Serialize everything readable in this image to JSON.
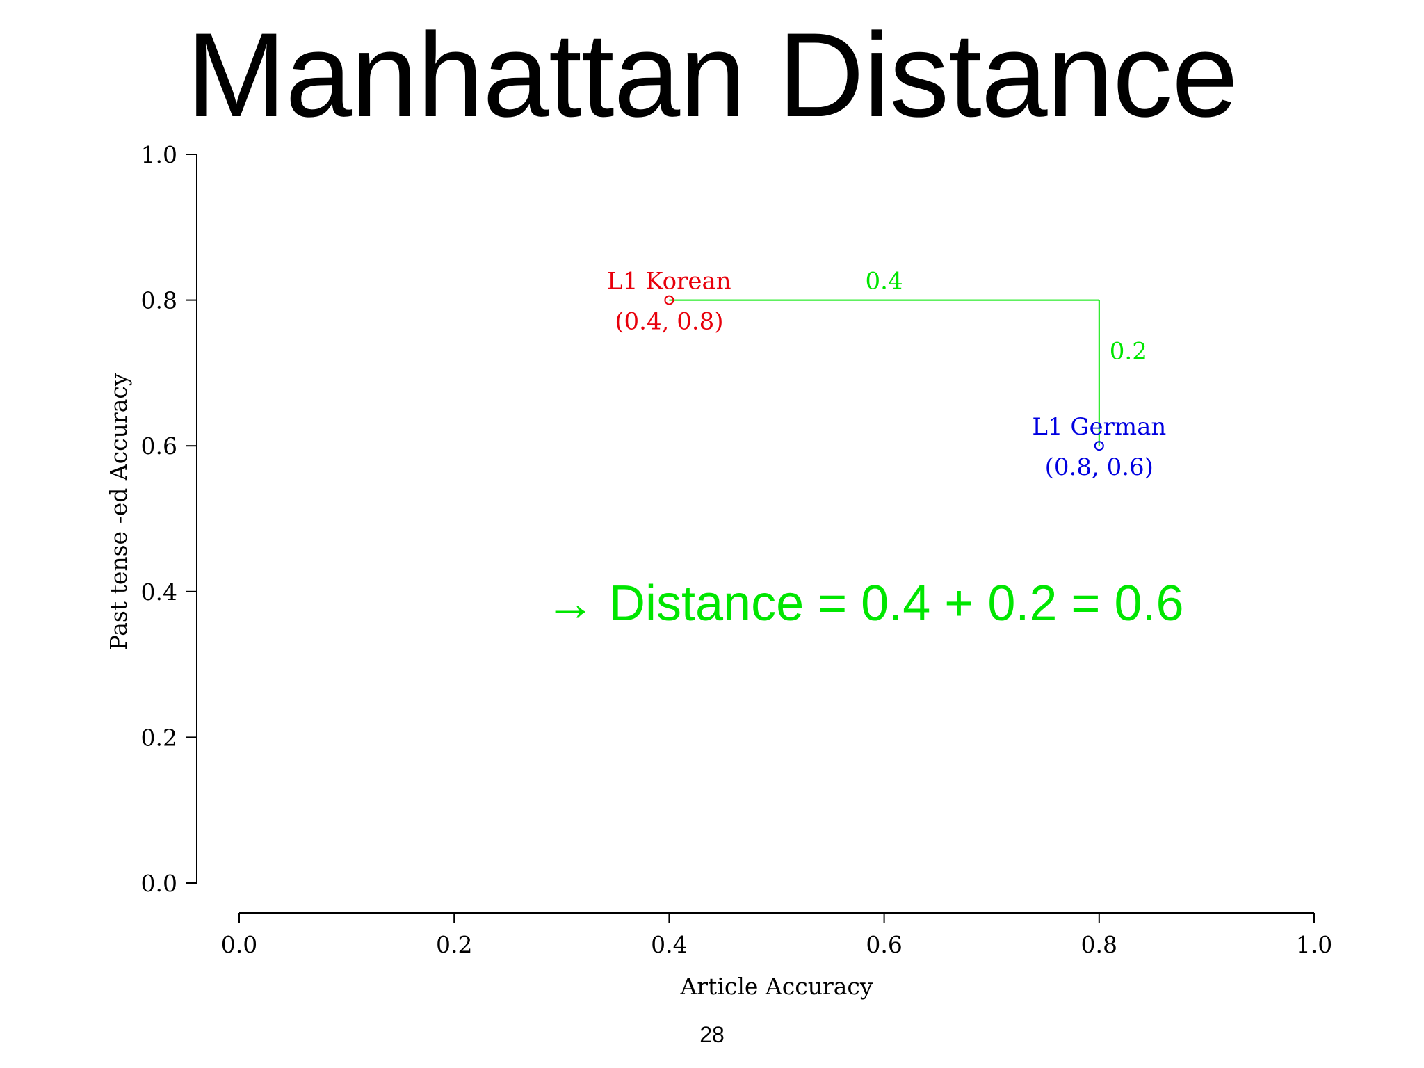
{
  "slide": {
    "title": "Manhattan Distance",
    "page_number": "28"
  },
  "colors": {
    "korean": "#e8000b",
    "german": "#0000e0",
    "distance": "#00e600",
    "axis": "#000000"
  },
  "chart_data": {
    "type": "scatter",
    "title": "",
    "xlabel": "Article Accuracy",
    "ylabel": "Past tense -ed Accuracy",
    "xlim": [
      0.0,
      1.0
    ],
    "ylim": [
      0.0,
      1.0
    ],
    "x_ticks": [
      "0.0",
      "0.2",
      "0.4",
      "0.6",
      "0.8",
      "1.0"
    ],
    "y_ticks": [
      "0.0",
      "0.2",
      "0.4",
      "0.6",
      "0.8",
      "1.0"
    ],
    "grid": false,
    "points": [
      {
        "name": "L1 Korean",
        "x": 0.4,
        "y": 0.8,
        "coord_label": "(0.4, 0.8)",
        "color": "#e8000b"
      },
      {
        "name": "L1 German",
        "x": 0.8,
        "y": 0.6,
        "coord_label": "(0.8, 0.6)",
        "color": "#0000e0"
      }
    ],
    "segments": [
      {
        "from": [
          0.4,
          0.8
        ],
        "to": [
          0.8,
          0.8
        ],
        "label": "0.4",
        "color": "#00e600"
      },
      {
        "from": [
          0.8,
          0.8
        ],
        "to": [
          0.8,
          0.6
        ],
        "label": "0.2",
        "color": "#00e600"
      }
    ],
    "annotation": "→ Distance = 0.4 + 0.2 = 0.6"
  }
}
